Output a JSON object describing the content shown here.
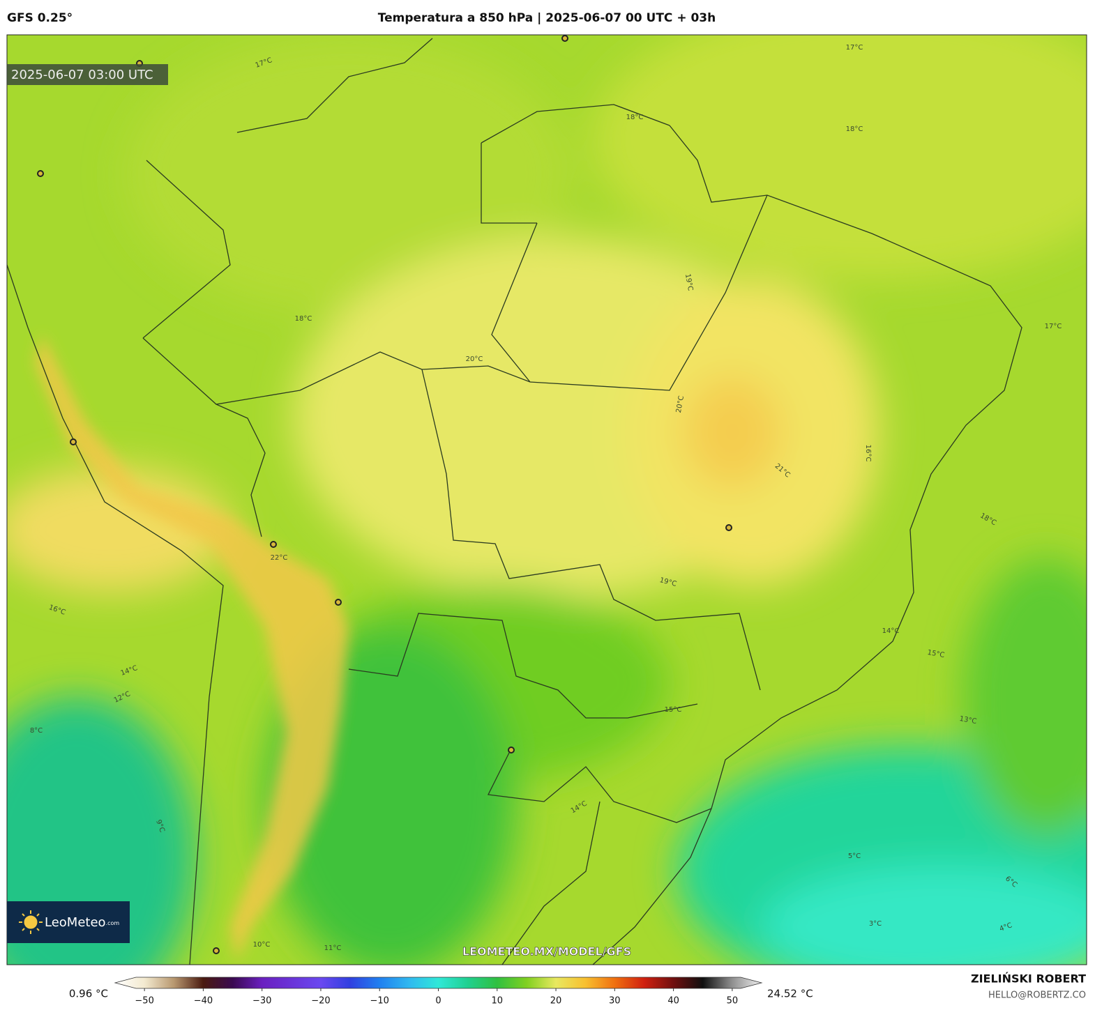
{
  "header": {
    "model": "GFS 0.25°",
    "title": "Temperatura a 850 hPa | 2025-06-07 00 UTC + 03h"
  },
  "map": {
    "valid_time": "2025-06-07 03:00 UTC",
    "logo": "LeoMeteo",
    "logo_suffix": ".com",
    "url": "LEOMETEO.MX/MODEL/GFS",
    "contour_labels": [
      "17°C",
      "18°C",
      "20°C",
      "19°C",
      "20°C",
      "21°C",
      "16°C",
      "17°C",
      "18°C",
      "14°C",
      "15°C",
      "13°C",
      "22°C",
      "16°C",
      "14°C",
      "12°C",
      "8°C",
      "9°C",
      "11°C",
      "10°C",
      "5°C",
      "3°C",
      "4°C",
      "6°C",
      "18°C",
      "17°C",
      "18°C",
      "15°C",
      "19°C",
      "14°C"
    ]
  },
  "colorbar": {
    "min_label": "0.96 °C",
    "max_label": "24.52 °C",
    "lim": [
      -55,
      55
    ],
    "ticks": [
      {
        "value": -50,
        "label": "−50"
      },
      {
        "value": -40,
        "label": "−40"
      },
      {
        "value": -30,
        "label": "−30"
      },
      {
        "value": -20,
        "label": "−20"
      },
      {
        "value": -10,
        "label": "−10"
      },
      0,
      10,
      20,
      30,
      40,
      50
    ],
    "stops": [
      [
        -55,
        "#ffffff"
      ],
      [
        -50,
        "#f3ead0"
      ],
      [
        -45,
        "#b89870"
      ],
      [
        -40,
        "#4a1a10"
      ],
      [
        -35,
        "#3a0a50"
      ],
      [
        -30,
        "#6a20c0"
      ],
      [
        -20,
        "#6a48f0"
      ],
      [
        -15,
        "#3040e0"
      ],
      [
        -10,
        "#2080f0"
      ],
      [
        -5,
        "#30b8f0"
      ],
      [
        0,
        "#30e8d8"
      ],
      [
        5,
        "#20d090"
      ],
      [
        10,
        "#30c040"
      ],
      [
        15,
        "#80d020"
      ],
      [
        20,
        "#e8e860"
      ],
      [
        25,
        "#f8c030"
      ],
      [
        30,
        "#f07010"
      ],
      [
        35,
        "#d02010"
      ],
      [
        40,
        "#701010"
      ],
      [
        45,
        "#101010"
      ],
      [
        50,
        "#909090"
      ],
      [
        55,
        "#f0f0f0"
      ]
    ]
  },
  "footer": {
    "author": "ZIELIŃSKI ROBERT",
    "email": "HELLO@ROBERTZ.CO"
  }
}
